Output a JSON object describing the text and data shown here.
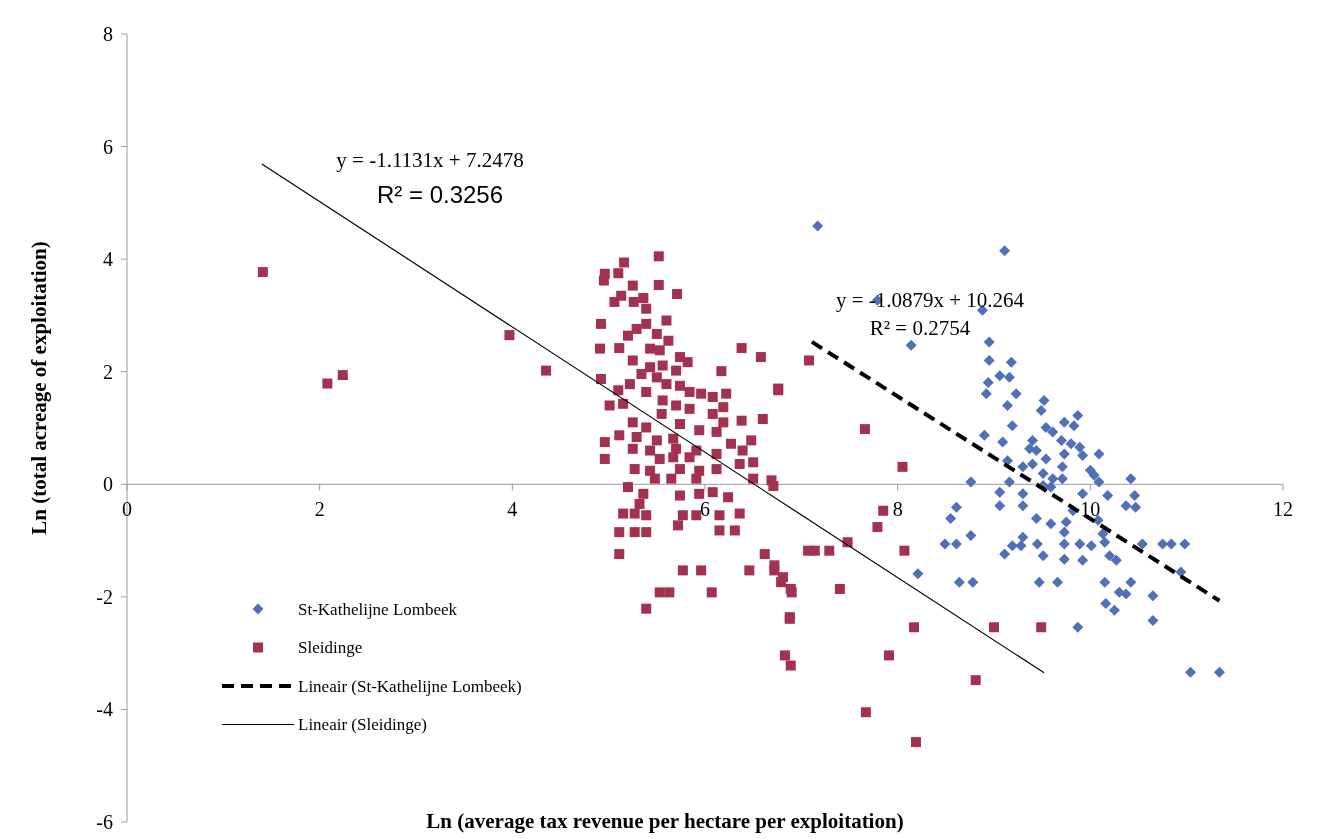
{
  "chart_data": {
    "type": "scatter",
    "xlabel": "Ln (average tax revenue per hectare per exploitation)",
    "ylabel": "Ln (total acreage of exploitation)",
    "xlim": [
      0,
      12
    ],
    "xticks": [
      0,
      2,
      4,
      6,
      8,
      10,
      12
    ],
    "ylim": [
      -6,
      8
    ],
    "yticks": [
      -6,
      -4,
      -2,
      0,
      2,
      4,
      6,
      8
    ],
    "grid": false,
    "legend": "bottom left",
    "annotations": [
      "y = -1.1131x + 7.2478",
      "R² = 0.3256",
      "y = -1.0879x + 10.264",
      "R² = 0.2754"
    ],
    "series": [
      {
        "name": "St-Kathelijne Lombeek",
        "marker": "diamond",
        "color": "#5070b8",
        "x": [
          7.17,
          9.11,
          7.79,
          8.88,
          8.14,
          8.95,
          8.95,
          9.18,
          9.06,
          9.16,
          8.94,
          8.92,
          9.23,
          9.14,
          9.52,
          9.49,
          9.87,
          9.73,
          9.19,
          9.83,
          9.54,
          9.61,
          9.7,
          8.9,
          9.09,
          9.4,
          9.8,
          9.89,
          9.37,
          9.44,
          9.73,
          9.92,
          10.09,
          9.54,
          9.14,
          9.3,
          9.4,
          9.71,
          10.0,
          9.51,
          9.61,
          9.71,
          10.04,
          8.76,
          9.16,
          9.51,
          9.59,
          10.42,
          10.09,
          9.06,
          9.3,
          9.92,
          10.18,
          10.46,
          8.61,
          9.06,
          9.3,
          9.82,
          10.37,
          10.47,
          8.55,
          9.44,
          9.59,
          9.75,
          10.08,
          9.73,
          8.76,
          9.3,
          10.13,
          8.49,
          8.61,
          9.19,
          9.28,
          9.45,
          9.73,
          9.89,
          10.01,
          10.15,
          10.54,
          10.75,
          10.84,
          10.98,
          9.11,
          9.51,
          9.73,
          9.92,
          10.2,
          10.27,
          10.94,
          8.21,
          8.64,
          8.78,
          9.47,
          9.66,
          10.15,
          10.42,
          10.3,
          10.37,
          10.65,
          10.16,
          10.25,
          10.65,
          9.87,
          11.04,
          11.34
        ],
        "values": [
          4.59,
          4.15,
          3.27,
          3.09,
          2.47,
          2.53,
          2.2,
          2.17,
          1.93,
          1.9,
          1.81,
          1.61,
          1.61,
          1.4,
          1.49,
          1.31,
          1.22,
          1.1,
          1.04,
          1.04,
          1.01,
          0.93,
          0.78,
          0.87,
          0.75,
          0.78,
          0.72,
          0.66,
          0.63,
          0.6,
          0.54,
          0.51,
          0.54,
          0.45,
          0.42,
          0.31,
          0.36,
          0.31,
          0.25,
          0.19,
          0.1,
          0.1,
          0.16,
          0.04,
          0.04,
          -0.02,
          -0.05,
          0.1,
          0.04,
          -0.14,
          -0.17,
          -0.17,
          -0.2,
          -0.2,
          -0.41,
          -0.38,
          -0.38,
          -0.47,
          -0.38,
          -0.41,
          -0.61,
          -0.61,
          -0.7,
          -0.67,
          -0.64,
          -0.85,
          -0.91,
          -0.94,
          -0.88,
          -1.06,
          -1.06,
          -1.09,
          -1.09,
          -1.06,
          -1.06,
          -1.06,
          -1.09,
          -1.03,
          -1.06,
          -1.06,
          -1.06,
          -1.06,
          -1.24,
          -1.27,
          -1.33,
          -1.35,
          -1.27,
          -1.35,
          -1.56,
          -1.59,
          -1.74,
          -1.74,
          -1.74,
          -1.74,
          -1.74,
          -1.74,
          -1.92,
          -1.95,
          -1.98,
          -2.12,
          -2.24,
          -2.42,
          -2.54,
          -3.34,
          -3.34
        ]
      },
      {
        "name": "Sleidinge",
        "marker": "square",
        "color": "#a3324f",
        "x": [
          1.41,
          2.08,
          2.24,
          3.97,
          4.35,
          5.52,
          5.16,
          4.96,
          5.1,
          4.95,
          5.25,
          5.52,
          5.71,
          5.13,
          5.06,
          5.26,
          5.36,
          5.39,
          4.92,
          5.6,
          5.39,
          5.29,
          5.2,
          5.5,
          5.62,
          4.91,
          5.11,
          6.38,
          6.58,
          5.43,
          5.53,
          5.74,
          5.82,
          5.25,
          6.17,
          5.43,
          5.56,
          5.7,
          5.34,
          4.92,
          5.22,
          5.5,
          5.6,
          5.74,
          5.1,
          6.22,
          6.76,
          5.96,
          6.08,
          5.39,
          5.84,
          5.01,
          5.15,
          5.56,
          5.7,
          5.84,
          6.19,
          6.08,
          5.55,
          5.25,
          5.39,
          5.74,
          5.94,
          6.19,
          6.38,
          6.6,
          5.11,
          5.29,
          5.5,
          5.67,
          6.12,
          4.96,
          5.25,
          5.43,
          5.7,
          5.91,
          6.27,
          6.48,
          4.96,
          5.53,
          5.67,
          5.84,
          6.12,
          6.39,
          5.27,
          5.43,
          5.74,
          5.94,
          6.12,
          6.36,
          6.5,
          5.48,
          5.65,
          5.91,
          6.5,
          5.2,
          5.36,
          5.74,
          5.94,
          6.08,
          6.24,
          6.71,
          5.32,
          5.15,
          5.27,
          5.39,
          5.77,
          5.91,
          6.15,
          6.36,
          5.72,
          6.15,
          6.31,
          5.11,
          5.27,
          5.39,
          5.11,
          6.62,
          5.77,
          5.96,
          6.46,
          6.72,
          5.53,
          5.63,
          6.07,
          6.79,
          6.9,
          5.39,
          6.88,
          7.08,
          6.76,
          7.66,
          8.05,
          6.69,
          7.85,
          7.79,
          7.07,
          7.14,
          7.29,
          7.48,
          8.07,
          6.72,
          6.81,
          6.89,
          7.4,
          6.88,
          8.17,
          9.0,
          9.49,
          6.83,
          6.89,
          7.91,
          8.81,
          7.67,
          8.19
        ],
        "values": [
          3.77,
          1.79,
          1.94,
          2.65,
          2.02,
          4.05,
          3.94,
          3.74,
          3.75,
          3.62,
          3.53,
          3.54,
          3.38,
          3.35,
          3.24,
          3.24,
          3.31,
          3.12,
          2.85,
          2.91,
          2.85,
          2.76,
          2.64,
          2.67,
          2.55,
          2.41,
          2.42,
          2.42,
          2.26,
          2.41,
          2.38,
          2.26,
          2.17,
          2.2,
          2.01,
          2.08,
          2.11,
          2.02,
          1.96,
          1.87,
          1.78,
          1.9,
          1.78,
          1.75,
          1.67,
          1.61,
          1.67,
          1.61,
          1.55,
          1.64,
          1.64,
          1.4,
          1.43,
          1.49,
          1.4,
          1.34,
          1.37,
          1.25,
          1.25,
          1.1,
          1.01,
          1.07,
          0.96,
          1.1,
          1.13,
          1.16,
          0.87,
          0.84,
          0.78,
          0.81,
          0.93,
          0.75,
          0.63,
          0.6,
          0.63,
          0.6,
          0.72,
          0.78,
          0.45,
          0.45,
          0.48,
          0.48,
          0.54,
          0.6,
          0.27,
          0.24,
          0.27,
          0.24,
          0.27,
          0.36,
          0.39,
          0.1,
          0.1,
          0.1,
          0.1,
          -0.05,
          -0.17,
          -0.2,
          -0.17,
          -0.14,
          -0.23,
          -0.03,
          -0.35,
          -0.52,
          -0.52,
          -0.55,
          -0.55,
          -0.55,
          -0.55,
          -0.52,
          -0.73,
          -0.82,
          -0.82,
          -0.85,
          -0.85,
          -0.85,
          -1.24,
          -1.24,
          -1.53,
          -1.53,
          -1.53,
          -1.53,
          -1.92,
          -1.92,
          -1.92,
          -1.74,
          -1.92,
          -2.21,
          -2.39,
          2.2,
          1.7,
          0.98,
          0.31,
          0.07,
          -0.47,
          -0.76,
          -1.18,
          -1.18,
          -1.18,
          -1.03,
          -1.18,
          -1.44,
          -1.65,
          -1.86,
          -1.86,
          -2.36,
          -2.54,
          -2.54,
          -2.54,
          -3.04,
          -3.22,
          -3.04,
          -3.48,
          -4.05,
          -4.58
        ]
      },
      {
        "name": "Lineair (St-Kathelijne Lombeek)",
        "type": "line",
        "line_style": "dashed",
        "color": "#000000",
        "x": [
          7.11,
          11.34
        ],
        "values": [
          2.53,
          -2.07
        ]
      },
      {
        "name": "Lineair (Sleidinge)",
        "type": "line",
        "line_style": "solid",
        "color": "#000000",
        "x": [
          1.4,
          9.52
        ],
        "values": [
          5.69,
          -3.35
        ]
      }
    ]
  }
}
